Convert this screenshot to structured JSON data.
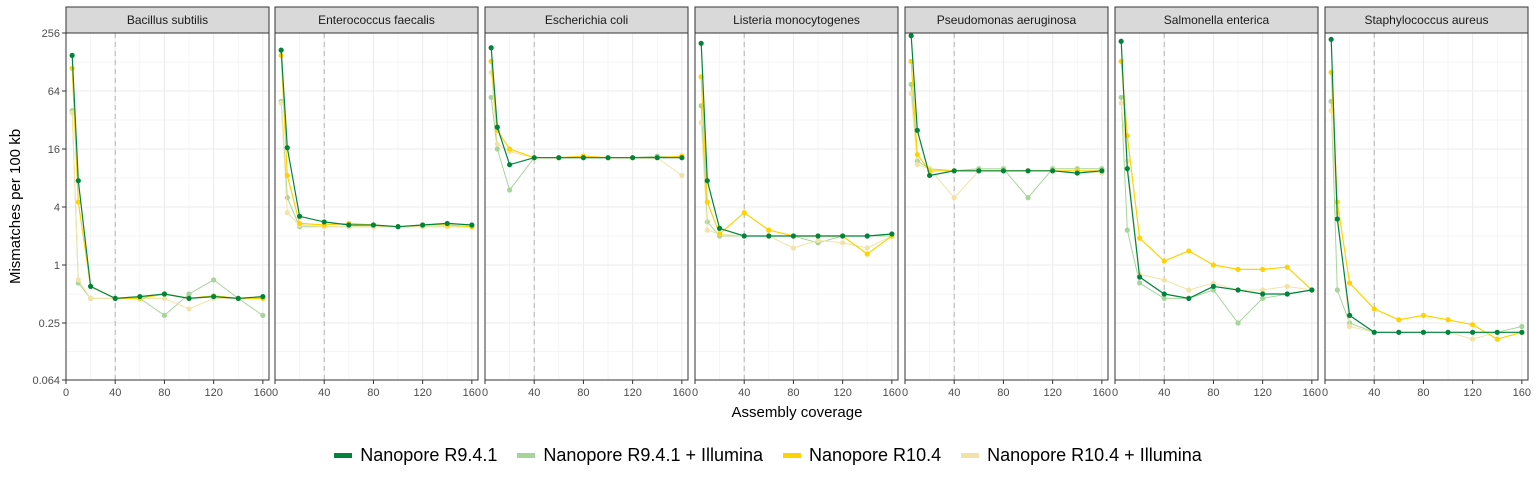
{
  "chart_data": {
    "type": "line",
    "facet_by": "species",
    "xlabel": "Assembly coverage",
    "ylabel": "Mismatches per 100 kb",
    "y_scale": "log2",
    "xlim": [
      0,
      165
    ],
    "ylim": [
      0.064,
      256
    ],
    "x_ticks": [
      0,
      40,
      80,
      120,
      160
    ],
    "x_tick_labels": [
      "0",
      "40",
      "80",
      "120",
      "160"
    ],
    "y_ticks": [
      0.064,
      0.25,
      1,
      4,
      16,
      64,
      256
    ],
    "y_tick_labels": [
      "0.064",
      "0.25",
      "1",
      "4",
      "16",
      "64",
      "256"
    ],
    "reference_line_x": 40,
    "grid": true,
    "legend_position": "bottom",
    "series_meta": [
      {
        "name": "Nanopore R9.4.1",
        "color": "#00843d"
      },
      {
        "name": "Nanopore R9.4.1 + Illumina",
        "color": "#a6d59a"
      },
      {
        "name": "Nanopore R10.4",
        "color": "#ffd200"
      },
      {
        "name": "Nanopore R10.4 + Illumina",
        "color": "#f1e3a8"
      }
    ],
    "panels": [
      {
        "title": "Bacillus subtilis",
        "series": [
          {
            "name": "Nanopore R9.4.1 + Illumina",
            "x": [
              5,
              10,
              20,
              40,
              60,
              80,
              100,
              120,
              140,
              160
            ],
            "y": [
              40,
              0.65,
              0.45,
              0.45,
              0.45,
              0.3,
              0.5,
              0.7,
              0.45,
              0.3
            ]
          },
          {
            "name": "Nanopore R10.4 + Illumina",
            "x": [
              5,
              10,
              20,
              40,
              60,
              80,
              100,
              120,
              140,
              160
            ],
            "y": [
              38,
              0.7,
              0.45,
              0.45,
              0.45,
              0.45,
              0.35,
              0.45,
              0.45,
              0.45
            ]
          },
          {
            "name": "Nanopore R10.4",
            "x": [
              5,
              10,
              20,
              40,
              60,
              80,
              100,
              120,
              140,
              160
            ],
            "y": [
              110,
              4.5,
              0.6,
              0.45,
              0.45,
              0.5,
              0.45,
              0.48,
              0.45,
              0.45
            ]
          },
          {
            "name": "Nanopore R9.4.1",
            "x": [
              5,
              10,
              20,
              40,
              60,
              80,
              100,
              120,
              140,
              160
            ],
            "y": [
              150,
              7.5,
              0.6,
              0.45,
              0.47,
              0.5,
              0.45,
              0.47,
              0.45,
              0.47
            ]
          }
        ]
      },
      {
        "title": "Enterococcus faecalis",
        "series": [
          {
            "name": "Nanopore R9.4.1 + Illumina",
            "x": [
              5,
              10,
              20,
              40,
              60,
              80,
              100,
              120,
              140,
              160
            ],
            "y": [
              50,
              5,
              2.5,
              2.5,
              2.5,
              2.5,
              2.5,
              2.5,
              2.5,
              2.5
            ]
          },
          {
            "name": "Nanopore R10.4 + Illumina",
            "x": [
              5,
              10,
              20,
              40,
              60,
              80,
              100,
              120,
              140,
              160
            ],
            "y": [
              48,
              3.5,
              2.6,
              2.5,
              2.5,
              2.5,
              2.5,
              2.5,
              2.5,
              2.5
            ]
          },
          {
            "name": "Nanopore R10.4",
            "x": [
              5,
              10,
              20,
              40,
              60,
              80,
              100,
              120,
              140,
              160
            ],
            "y": [
              150,
              8.5,
              2.7,
              2.6,
              2.7,
              2.6,
              2.5,
              2.6,
              2.6,
              2.5
            ]
          },
          {
            "name": "Nanopore R9.4.1",
            "x": [
              5,
              10,
              20,
              40,
              60,
              80,
              100,
              120,
              140,
              160
            ],
            "y": [
              170,
              16.5,
              3.2,
              2.8,
              2.6,
              2.6,
              2.5,
              2.6,
              2.7,
              2.6
            ]
          }
        ]
      },
      {
        "title": "Escherichia coli",
        "series": [
          {
            "name": "Nanopore R9.4.1 + Illumina",
            "x": [
              5,
              10,
              20,
              40,
              60,
              80,
              100,
              120,
              140,
              160
            ],
            "y": [
              55,
              16,
              6,
              13,
              13,
              13,
              13,
              13,
              13.5,
              13
            ]
          },
          {
            "name": "Nanopore R10.4 + Illumina",
            "x": [
              5,
              10,
              20,
              40,
              60,
              80,
              100,
              120,
              140,
              160
            ],
            "y": [
              100,
              18,
              15,
              13,
              13,
              13,
              13,
              13,
              13,
              8.5
            ]
          },
          {
            "name": "Nanopore R10.4",
            "x": [
              5,
              10,
              20,
              40,
              60,
              80,
              100,
              120,
              140,
              160
            ],
            "y": [
              130,
              25,
              16,
              13,
              13,
              13.5,
              13,
              13,
              13,
              13.5
            ]
          },
          {
            "name": "Nanopore R9.4.1",
            "x": [
              5,
              10,
              20,
              40,
              60,
              80,
              100,
              120,
              140,
              160
            ],
            "y": [
              180,
              27,
              11,
              13,
              13,
              13,
              13,
              13,
              13,
              13
            ]
          }
        ]
      },
      {
        "title": "Listeria monocytogenes",
        "series": [
          {
            "name": "Nanopore R9.4.1 + Illumina",
            "x": [
              5,
              10,
              20,
              40,
              60,
              80,
              100,
              120,
              140,
              160
            ],
            "y": [
              45,
              2.8,
              2,
              2,
              2,
              2,
              1.7,
              2,
              2,
              2
            ]
          },
          {
            "name": "Nanopore R10.4 + Illumina",
            "x": [
              5,
              10,
              20,
              40,
              60,
              80,
              100,
              120,
              140,
              160
            ],
            "y": [
              30,
              2.3,
              2.1,
              2,
              2,
              1.5,
              1.8,
              1.7,
              1.5,
              2
            ]
          },
          {
            "name": "Nanopore R10.4",
            "x": [
              5,
              10,
              20,
              40,
              60,
              80,
              100,
              120,
              140,
              160
            ],
            "y": [
              90,
              4.5,
              2.1,
              3.5,
              2.3,
              2,
              2,
              2,
              1.3,
              2
            ]
          },
          {
            "name": "Nanopore R9.4.1",
            "x": [
              5,
              10,
              20,
              40,
              60,
              80,
              100,
              120,
              140,
              160
            ],
            "y": [
              200,
              7.5,
              2.4,
              2,
              2,
              2,
              2,
              2,
              2,
              2.1
            ]
          }
        ]
      },
      {
        "title": "Pseudomonas aeruginosa",
        "series": [
          {
            "name": "Nanopore R9.4.1 + Illumina",
            "x": [
              5,
              10,
              20,
              40,
              60,
              80,
              100,
              120,
              140,
              160
            ],
            "y": [
              75,
              12,
              10,
              9.5,
              10,
              10,
              5,
              10,
              10,
              10
            ]
          },
          {
            "name": "Nanopore R10.4 + Illumina",
            "x": [
              5,
              10,
              20,
              40,
              60,
              80,
              100,
              120,
              140,
              160
            ],
            "y": [
              60,
              11,
              10,
              5,
              9.5,
              9.5,
              9.5,
              9.5,
              9.5,
              9
            ]
          },
          {
            "name": "Nanopore R10.4",
            "x": [
              5,
              10,
              20,
              40,
              60,
              80,
              100,
              120,
              140,
              160
            ],
            "y": [
              130,
              14,
              9.5,
              9.5,
              9.5,
              9.5,
              9.5,
              9.5,
              9.5,
              9.5
            ]
          },
          {
            "name": "Nanopore R9.4.1",
            "x": [
              5,
              10,
              20,
              40,
              60,
              80,
              100,
              120,
              140,
              160
            ],
            "y": [
              240,
              25,
              8.5,
              9.5,
              9.5,
              9.5,
              9.5,
              9.5,
              9,
              9.5
            ]
          }
        ]
      },
      {
        "title": "Salmonella enterica",
        "series": [
          {
            "name": "Nanopore R9.4.1 + Illumina",
            "x": [
              5,
              10,
              20,
              40,
              60,
              80,
              100,
              120,
              140,
              160
            ],
            "y": [
              55,
              2.3,
              0.65,
              0.45,
              0.45,
              0.55,
              0.25,
              0.45,
              0.5,
              0.55
            ]
          },
          {
            "name": "Nanopore R10.4 + Illumina",
            "x": [
              5,
              10,
              20,
              40,
              60,
              80,
              100,
              120,
              140,
              160
            ],
            "y": [
              48,
              12,
              0.8,
              0.7,
              0.55,
              0.65,
              0.55,
              0.55,
              0.6,
              0.55
            ]
          },
          {
            "name": "Nanopore R10.4",
            "x": [
              5,
              10,
              20,
              40,
              60,
              80,
              100,
              120,
              140,
              160
            ],
            "y": [
              130,
              22,
              1.9,
              1.1,
              1.4,
              1,
              0.9,
              0.9,
              0.95,
              0.55
            ]
          },
          {
            "name": "Nanopore R9.4.1",
            "x": [
              5,
              10,
              20,
              40,
              60,
              80,
              100,
              120,
              140,
              160
            ],
            "y": [
              210,
              10,
              0.75,
              0.5,
              0.45,
              0.6,
              0.55,
              0.5,
              0.5,
              0.55
            ]
          }
        ]
      },
      {
        "title": "Staphylococcus aureus",
        "series": [
          {
            "name": "Nanopore R9.4.1 + Illumina",
            "x": [
              5,
              10,
              20,
              40,
              60,
              80,
              100,
              120,
              140,
              160
            ],
            "y": [
              50,
              0.55,
              0.25,
              0.2,
              0.2,
              0.2,
              0.2,
              0.2,
              0.2,
              0.23
            ]
          },
          {
            "name": "Nanopore R10.4 + Illumina",
            "x": [
              5,
              10,
              20,
              40,
              60,
              80,
              100,
              120,
              140,
              160
            ],
            "y": [
              40,
              3.5,
              0.23,
              0.2,
              0.2,
              0.2,
              0.2,
              0.17,
              0.2,
              0.2
            ]
          },
          {
            "name": "Nanopore R10.4",
            "x": [
              5,
              10,
              20,
              40,
              60,
              80,
              100,
              120,
              140,
              160
            ],
            "y": [
              100,
              4.5,
              0.65,
              0.35,
              0.27,
              0.3,
              0.27,
              0.24,
              0.17,
              0.2
            ]
          },
          {
            "name": "Nanopore R9.4.1",
            "x": [
              5,
              10,
              20,
              40,
              60,
              80,
              100,
              120,
              140,
              160
            ],
            "y": [
              220,
              3,
              0.3,
              0.2,
              0.2,
              0.2,
              0.2,
              0.2,
              0.2,
              0.2
            ]
          }
        ]
      }
    ]
  }
}
